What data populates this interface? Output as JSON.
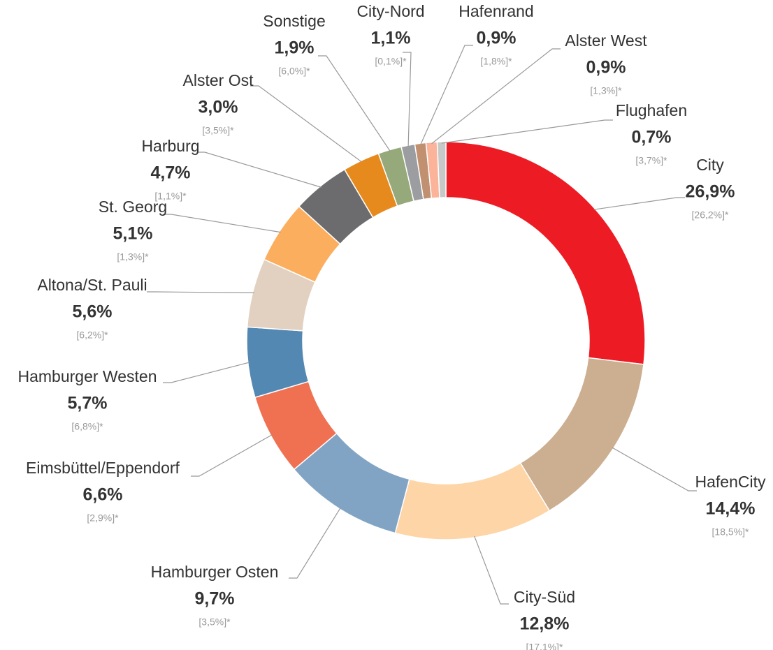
{
  "chart_data": {
    "type": "donut",
    "categories": [
      "City",
      "HafenCity",
      "City-Süd",
      "Hamburger Osten",
      "Eimsbüttel/Eppendorf",
      "Hamburger Westen",
      "Altona/St. Pauli",
      "St. Georg",
      "Harburg",
      "Alster Ost",
      "Sonstige",
      "City-Nord",
      "Hafenrand",
      "Alster West",
      "Flughafen"
    ],
    "values": [
      26.9,
      14.4,
      12.8,
      9.7,
      6.6,
      5.7,
      5.6,
      5.1,
      4.7,
      3.0,
      1.9,
      1.1,
      0.9,
      0.9,
      0.7
    ],
    "value_labels": [
      "26,9%",
      "14,4%",
      "12,8%",
      "9,7%",
      "6,6%",
      "5,7%",
      "5,6%",
      "5,1%",
      "4,7%",
      "3,0%",
      "1,9%",
      "1,1%",
      "0,9%",
      "0,9%",
      "0,7%"
    ],
    "secondary_labels": [
      "[26,2%]*",
      "[18,5%]*",
      "[17,1%]*",
      "[3,5%]*",
      "[2,9%]*",
      "[6,8%]*",
      "[6,2%]*",
      "[1,3%]*",
      "[1,1%]*",
      "[3,5%]*",
      "[6,0%]*",
      "[0,1%]*",
      "[1,8%]*",
      "[1,3%]*",
      "[3,7%]*"
    ],
    "colors": [
      "#ed1c24",
      "#ccae90",
      "#fdd5a6",
      "#82a4c4",
      "#f07052",
      "#5388b2",
      "#e2d1c1",
      "#fbae5e",
      "#6c6c6e",
      "#e68a1e",
      "#96a97a",
      "#9b9da0",
      "#c09070",
      "#fbb49a",
      "#c8c8c8"
    ]
  }
}
